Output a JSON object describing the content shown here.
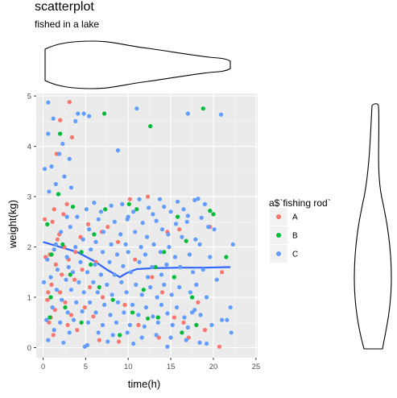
{
  "chart_data": {
    "type": "scatter",
    "title": "scatterplot",
    "subtitle": "fished in a lake",
    "xlabel": "time(h)",
    "ylabel": "weight(kg)",
    "xlim": [
      -0.8,
      25.2
    ],
    "ylim": [
      -0.2,
      5.05
    ],
    "x_ticks": [
      "0",
      "5",
      "10",
      "15",
      "20",
      "25"
    ],
    "y_ticks": [
      "0",
      "1",
      "2",
      "3",
      "4",
      "5"
    ],
    "grid": true,
    "legend": {
      "title": "a$`fishing rod`",
      "placement": "right",
      "items": [
        "A",
        "B",
        "C"
      ]
    },
    "colors": {
      "A": "#F8766D",
      "B": "#00BA38",
      "C": "#619CFF",
      "smooth": "#3366FF"
    },
    "smooth_line": {
      "x": [
        0,
        2,
        4,
        6,
        7.5,
        9,
        9.8,
        11,
        13,
        16,
        19,
        22
      ],
      "y": [
        2.1,
        2.0,
        1.9,
        1.72,
        1.55,
        1.4,
        1.48,
        1.56,
        1.58,
        1.59,
        1.59,
        1.6
      ]
    },
    "marginal_top": {
      "type": "violin",
      "variable": "time(h)",
      "range": [
        0,
        22.2
      ]
    },
    "marginal_right": {
      "type": "violin",
      "variable": "weight(kg)",
      "range": [
        0,
        4.87
      ]
    },
    "series": [
      {
        "name": "A",
        "points": [
          [
            3.1,
            4.88
          ],
          [
            2.0,
            4.52
          ],
          [
            3.4,
            4.18
          ],
          [
            1.6,
            3.85
          ],
          [
            12.3,
            3.0
          ],
          [
            10.2,
            2.95
          ],
          [
            2.8,
            2.85
          ],
          [
            0.2,
            2.55
          ],
          [
            1.1,
            2.5
          ],
          [
            5.3,
            2.45
          ],
          [
            7.6,
            2.4
          ],
          [
            14.6,
            2.3
          ],
          [
            4.4,
            2.2
          ],
          [
            1.7,
            2.15
          ],
          [
            8.8,
            2.1
          ],
          [
            2.5,
            2.0
          ],
          [
            0.8,
            1.85
          ],
          [
            3.0,
            1.75
          ],
          [
            6.2,
            1.7
          ],
          [
            0.3,
            1.8
          ],
          [
            1.5,
            1.65
          ],
          [
            4.6,
            1.55
          ],
          [
            2.2,
            1.45
          ],
          [
            12.8,
            1.4
          ],
          [
            3.7,
            1.35
          ],
          [
            1.0,
            1.25
          ],
          [
            5.5,
            1.2
          ],
          [
            2.0,
            1.1
          ],
          [
            7.0,
            1.0
          ],
          [
            0.5,
            0.95
          ],
          [
            2.6,
            0.9
          ],
          [
            9.6,
            0.85
          ],
          [
            1.4,
            0.75
          ],
          [
            3.3,
            0.65
          ],
          [
            5.9,
            0.62
          ],
          [
            15.4,
            0.6
          ],
          [
            0.7,
            0.5
          ],
          [
            2.9,
            0.45
          ],
          [
            11.2,
            0.45
          ],
          [
            16.5,
            0.5
          ],
          [
            4.0,
            0.35
          ],
          [
            1.2,
            0.25
          ],
          [
            6.6,
            0.15
          ],
          [
            8.9,
            0.12
          ],
          [
            0.9,
            0.6
          ],
          [
            20.7,
            0.02
          ],
          [
            17.1,
            0.2
          ],
          [
            19.0,
            0.35
          ],
          [
            13.6,
            0.2
          ],
          [
            18.2,
            0.9
          ],
          [
            21.0,
            1.5
          ],
          [
            16.0,
            2.35
          ],
          [
            19.6,
            2.4
          ],
          [
            2.4,
            2.65
          ],
          [
            0.6,
            1.1
          ],
          [
            3.8,
            1.9
          ],
          [
            1.9,
            2.25
          ],
          [
            10.8,
            1.75
          ],
          [
            14.0,
            1.1
          ],
          [
            4.9,
            0.8
          ],
          [
            1.3,
            2.75
          ],
          [
            6.9,
            2.3
          ]
        ]
      },
      {
        "name": "B",
        "points": [
          [
            18.8,
            4.75
          ],
          [
            7.2,
            4.65
          ],
          [
            12.6,
            4.4
          ],
          [
            2.0,
            4.25
          ],
          [
            0.5,
            2.45
          ],
          [
            1.8,
            3.05
          ],
          [
            3.5,
            2.8
          ],
          [
            7.3,
            2.75
          ],
          [
            10.1,
            2.85
          ],
          [
            11.0,
            2.75
          ],
          [
            15.8,
            2.6
          ],
          [
            19.6,
            2.72
          ],
          [
            20.0,
            2.65
          ],
          [
            16.8,
            2.12
          ],
          [
            4.5,
            1.9
          ],
          [
            1.0,
            1.85
          ],
          [
            5.6,
            1.65
          ],
          [
            13.2,
            1.6
          ],
          [
            14.2,
            1.9
          ],
          [
            15.4,
            1.4
          ],
          [
            3.2,
            1.45
          ],
          [
            6.6,
            1.2
          ],
          [
            0.9,
            1.0
          ],
          [
            2.6,
            0.8
          ],
          [
            8.2,
            0.95
          ],
          [
            10.5,
            0.7
          ],
          [
            12.3,
            0.58
          ],
          [
            0.8,
            0.6
          ],
          [
            18.0,
            0.45
          ],
          [
            4.5,
            0.5
          ],
          [
            9.0,
            0.25
          ],
          [
            16.3,
            0.3
          ],
          [
            6.0,
            2.25
          ],
          [
            2.3,
            2.05
          ],
          [
            11.8,
            1.15
          ],
          [
            21.5,
            1.8
          ],
          [
            13.5,
            0.6
          ],
          [
            17.5,
            1.0
          ]
        ]
      },
      {
        "name": "C",
        "points": [
          [
            0.6,
            4.87
          ],
          [
            4.1,
            4.65
          ],
          [
            4.8,
            4.65
          ],
          [
            5.4,
            4.6
          ],
          [
            20.9,
            4.63
          ],
          [
            11.0,
            4.75
          ],
          [
            17.0,
            4.65
          ],
          [
            3.8,
            4.5
          ],
          [
            1.2,
            4.55
          ],
          [
            0.6,
            4.25
          ],
          [
            2.3,
            4.05
          ],
          [
            8.8,
            3.92
          ],
          [
            1.9,
            3.85
          ],
          [
            3.1,
            3.75
          ],
          [
            1.0,
            3.6
          ],
          [
            0.2,
            3.55
          ],
          [
            2.5,
            3.4
          ],
          [
            1.5,
            3.25
          ],
          [
            3.3,
            3.18
          ],
          [
            0.7,
            3.1
          ],
          [
            11.3,
            2.95
          ],
          [
            13.7,
            2.95
          ],
          [
            15.8,
            2.9
          ],
          [
            17.8,
            2.93
          ],
          [
            18.2,
            2.96
          ],
          [
            6.0,
            2.88
          ],
          [
            8.0,
            2.82
          ],
          [
            9.3,
            2.85
          ],
          [
            12.4,
            2.78
          ],
          [
            14.2,
            2.8
          ],
          [
            16.5,
            2.75
          ],
          [
            19.0,
            2.85
          ],
          [
            5.1,
            2.75
          ],
          [
            10.6,
            2.7
          ],
          [
            12.9,
            2.65
          ],
          [
            15.0,
            2.7
          ],
          [
            17.0,
            2.62
          ],
          [
            18.6,
            2.58
          ],
          [
            4.0,
            2.6
          ],
          [
            6.5,
            2.55
          ],
          [
            8.4,
            2.5
          ],
          [
            9.9,
            2.55
          ],
          [
            11.7,
            2.48
          ],
          [
            13.3,
            2.52
          ],
          [
            15.6,
            2.46
          ],
          [
            16.9,
            2.5
          ],
          [
            19.4,
            2.4
          ],
          [
            20.1,
            2.35
          ],
          [
            3.2,
            2.4
          ],
          [
            5.4,
            2.35
          ],
          [
            7.1,
            2.3
          ],
          [
            9.1,
            2.25
          ],
          [
            10.8,
            2.3
          ],
          [
            12.2,
            2.2
          ],
          [
            14.7,
            2.25
          ],
          [
            16.3,
            2.2
          ],
          [
            17.9,
            2.15
          ],
          [
            2.1,
            2.3
          ],
          [
            4.7,
            2.15
          ],
          [
            6.2,
            2.1
          ],
          [
            8.0,
            2.05
          ],
          [
            9.7,
            2.05
          ],
          [
            11.5,
            2.0
          ],
          [
            13.0,
            2.05
          ],
          [
            14.8,
            2.0
          ],
          [
            18.4,
            2.05
          ],
          [
            22.3,
            2.05
          ],
          [
            1.5,
            2.05
          ],
          [
            3.8,
            2.0
          ],
          [
            5.6,
            1.95
          ],
          [
            7.0,
            1.9
          ],
          [
            8.7,
            1.85
          ],
          [
            10.0,
            1.9
          ],
          [
            12.0,
            1.85
          ],
          [
            13.8,
            1.9
          ],
          [
            15.5,
            1.8
          ],
          [
            17.2,
            1.85
          ],
          [
            19.6,
            1.8
          ],
          [
            0.5,
            1.75
          ],
          [
            2.8,
            1.8
          ],
          [
            4.4,
            1.7
          ],
          [
            6.1,
            1.65
          ],
          [
            7.8,
            1.7
          ],
          [
            9.4,
            1.62
          ],
          [
            11.3,
            1.7
          ],
          [
            12.8,
            1.6
          ],
          [
            14.5,
            1.65
          ],
          [
            16.1,
            1.6
          ],
          [
            18.8,
            1.55
          ],
          [
            1.7,
            1.55
          ],
          [
            3.5,
            1.5
          ],
          [
            5.2,
            1.5
          ],
          [
            6.8,
            1.45
          ],
          [
            8.4,
            1.45
          ],
          [
            10.3,
            1.5
          ],
          [
            12.3,
            1.4
          ],
          [
            13.9,
            1.45
          ],
          [
            17.6,
            1.5
          ],
          [
            20.4,
            1.35
          ],
          [
            0.9,
            1.4
          ],
          [
            2.7,
            1.35
          ],
          [
            4.2,
            1.3
          ],
          [
            5.9,
            1.3
          ],
          [
            7.5,
            1.25
          ],
          [
            9.2,
            1.3
          ],
          [
            10.9,
            1.25
          ],
          [
            12.6,
            1.2
          ],
          [
            14.2,
            1.25
          ],
          [
            16.0,
            1.2
          ],
          [
            18.0,
            1.25
          ],
          [
            0.1,
            1.3
          ],
          [
            1.6,
            1.15
          ],
          [
            3.3,
            1.15
          ],
          [
            4.8,
            1.1
          ],
          [
            6.4,
            1.1
          ],
          [
            8.1,
            1.05
          ],
          [
            9.8,
            1.1
          ],
          [
            11.6,
            1.05
          ],
          [
            13.4,
            1.0
          ],
          [
            15.1,
            1.05
          ],
          [
            17.3,
            1.1
          ],
          [
            19.2,
            1.0
          ],
          [
            2.2,
            0.95
          ],
          [
            3.9,
            0.9
          ],
          [
            5.5,
            0.9
          ],
          [
            7.2,
            0.85
          ],
          [
            8.8,
            0.9
          ],
          [
            10.5,
            0.85
          ],
          [
            12.1,
            0.8
          ],
          [
            13.9,
            0.85
          ],
          [
            15.7,
            0.8
          ],
          [
            17.8,
            0.75
          ],
          [
            22.0,
            0.8
          ],
          [
            1.1,
            0.8
          ],
          [
            2.9,
            0.7
          ],
          [
            4.6,
            0.72
          ],
          [
            6.2,
            0.7
          ],
          [
            7.9,
            0.65
          ],
          [
            9.5,
            0.7
          ],
          [
            11.2,
            0.65
          ],
          [
            12.9,
            0.62
          ],
          [
            14.6,
            0.68
          ],
          [
            16.6,
            0.6
          ],
          [
            18.5,
            0.65
          ],
          [
            0.4,
            0.55
          ],
          [
            2.0,
            0.5
          ],
          [
            3.6,
            0.55
          ],
          [
            5.3,
            0.5
          ],
          [
            7.0,
            0.45
          ],
          [
            8.6,
            0.5
          ],
          [
            10.2,
            0.45
          ],
          [
            11.9,
            0.42
          ],
          [
            13.5,
            0.5
          ],
          [
            15.2,
            0.45
          ],
          [
            17.0,
            0.4
          ],
          [
            19.8,
            0.45
          ],
          [
            21.0,
            0.55
          ],
          [
            1.3,
            0.35
          ],
          [
            3.1,
            0.3
          ],
          [
            4.9,
            0.02
          ],
          [
            6.5,
            0.3
          ],
          [
            8.2,
            0.25
          ],
          [
            9.9,
            0.3
          ],
          [
            11.6,
            0.2
          ],
          [
            13.3,
            0.25
          ],
          [
            15.0,
            0.2
          ],
          [
            16.8,
            0.15
          ],
          [
            18.4,
            0.1
          ],
          [
            22.1,
            0.3
          ],
          [
            0.6,
            0.15
          ],
          [
            2.4,
            0.1
          ],
          [
            5.2,
            0.05
          ],
          [
            7.6,
            0.12
          ],
          [
            10.6,
            0.08
          ],
          [
            14.6,
            0.02
          ],
          [
            19.2,
            0.08
          ],
          [
            17.5,
            0.7
          ],
          [
            21.6,
            0.55
          ],
          [
            14.0,
            2.35
          ],
          [
            10.0,
            2.6
          ],
          [
            6.8,
            2.7
          ],
          [
            2.8,
            2.6
          ],
          [
            1.3,
            1.95
          ],
          [
            3.0,
            1.6
          ]
        ]
      }
    ]
  }
}
